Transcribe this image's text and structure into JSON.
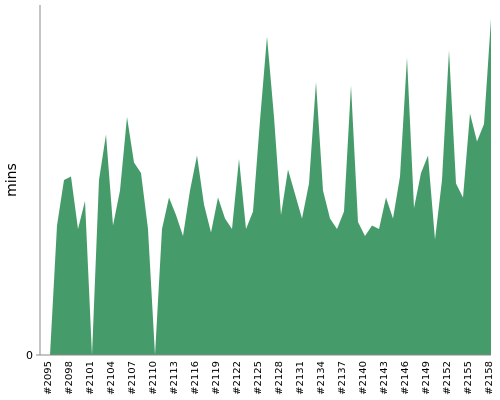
{
  "chart_data": {
    "type": "area",
    "y_label": "mins",
    "color": "#459c6a",
    "categories": [
      "#2095",
      null,
      null,
      "#2098",
      null,
      null,
      "#2101",
      null,
      null,
      "#2104",
      null,
      null,
      "#2107",
      null,
      null,
      "#2110",
      null,
      null,
      "#2113",
      null,
      null,
      "#2116",
      null,
      null,
      "#2119",
      null,
      null,
      "#2122",
      null,
      null,
      "#2125",
      null,
      null,
      "#2128",
      null,
      null,
      "#2131",
      null,
      null,
      "#2134",
      null,
      null,
      "#2137",
      null,
      null,
      "#2140",
      null,
      null,
      "#2143",
      null,
      null,
      "#2146",
      null,
      null,
      "#2149",
      null,
      null,
      "#2152",
      null,
      null,
      "#2155",
      null,
      null,
      "#2158"
    ],
    "values": [
      0,
      3.7,
      5.0,
      5.1,
      3.6,
      4.4,
      0,
      5.0,
      6.3,
      3.7,
      4.7,
      6.8,
      5.5,
      5.2,
      3.6,
      0,
      3.6,
      4.5,
      4.0,
      3.4,
      4.7,
      5.7,
      4.3,
      3.5,
      4.5,
      3.9,
      3.6,
      5.6,
      3.6,
      4.1,
      6.7,
      9.1,
      6.8,
      4.0,
      5.3,
      4.6,
      3.9,
      4.9,
      7.8,
      4.7,
      3.9,
      3.6,
      4.1,
      7.7,
      3.8,
      3.4,
      3.7,
      3.6,
      4.5,
      3.9,
      5.1,
      8.5,
      4.2,
      5.2,
      5.7,
      3.3,
      5.0,
      8.7,
      4.9,
      4.5,
      6.9,
      6.1,
      6.6,
      9.6
    ],
    "ylim": [
      0,
      10
    ],
    "yticks": [
      0
    ]
  }
}
